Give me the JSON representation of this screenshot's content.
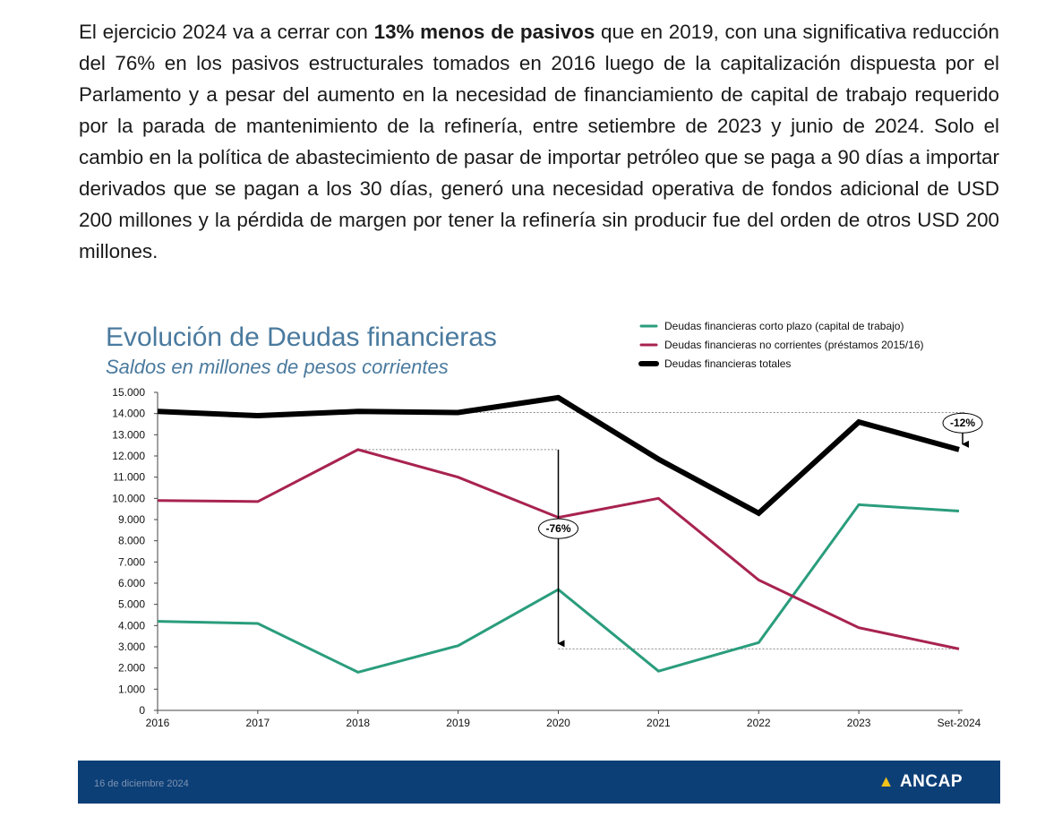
{
  "paragraph": {
    "part1": "El ejercicio 2024 va a cerrar con ",
    "bold": "13% menos de pasivos",
    "part2": " que en 2019, con una significativa reducción del 76% en los pasivos estructurales tomados en 2016 luego de la capitalización dispuesta por el Parlamento y a pesar del aumento en la necesidad de financiamiento de capital de trabajo requerido por la parada de mantenimiento de la refinería, entre setiembre de 2023 y junio de 2024. Solo el cambio en la política de abastecimiento de pasar de importar petróleo que se paga a 90 días a importar derivados que se pagan a los 30 días, generó una necesidad operativa de fondos adicional de USD 200 millones y la pérdida de margen por tener la refinería sin producir fue del orden de otros USD 200 millones."
  },
  "chart_data": {
    "type": "line",
    "title": "Evolución de Deudas financieras",
    "subtitle": "Saldos en millones de pesos corrientes",
    "categories": [
      "2016",
      "2017",
      "2018",
      "2019",
      "2020",
      "2021",
      "2022",
      "2023",
      "Set-2024"
    ],
    "ylim": [
      0,
      15000
    ],
    "yticks": [
      "0",
      "1.000",
      "2.000",
      "3.000",
      "4.000",
      "5.000",
      "6.000",
      "7.000",
      "8.000",
      "9.000",
      "10.000",
      "11.000",
      "12.000",
      "13.000",
      "14.000",
      "15.000"
    ],
    "grid": false,
    "legend_position": "top-right",
    "series": [
      {
        "name": "Deudas financieras corto plazo (capital de trabajo)",
        "color": "#2a9d7c",
        "values": [
          4200,
          4100,
          1800,
          3050,
          5700,
          1850,
          3200,
          9700,
          9400
        ]
      },
      {
        "name": "Deudas financieras no corrientes (préstamos 2015/16)",
        "color": "#a8234f",
        "values": [
          9900,
          9850,
          12300,
          11000,
          9100,
          10000,
          6150,
          3900,
          2900
        ]
      },
      {
        "name": "Deudas financieras totales",
        "color": "#000000",
        "values": [
          14100,
          13900,
          14100,
          14050,
          14750,
          11850,
          9300,
          13600,
          12300
        ]
      }
    ],
    "annotations": [
      {
        "label": "-76%",
        "from": 12300,
        "to": 2900,
        "at": "2020"
      },
      {
        "label": "-12%",
        "from": 14050,
        "to": 12300,
        "at": "Set-2024"
      }
    ]
  },
  "footer": {
    "date": "16 de diciembre 2024",
    "logo_text": "ANCAP",
    "logo_mark": "▲",
    "background": "#0d3f77"
  }
}
